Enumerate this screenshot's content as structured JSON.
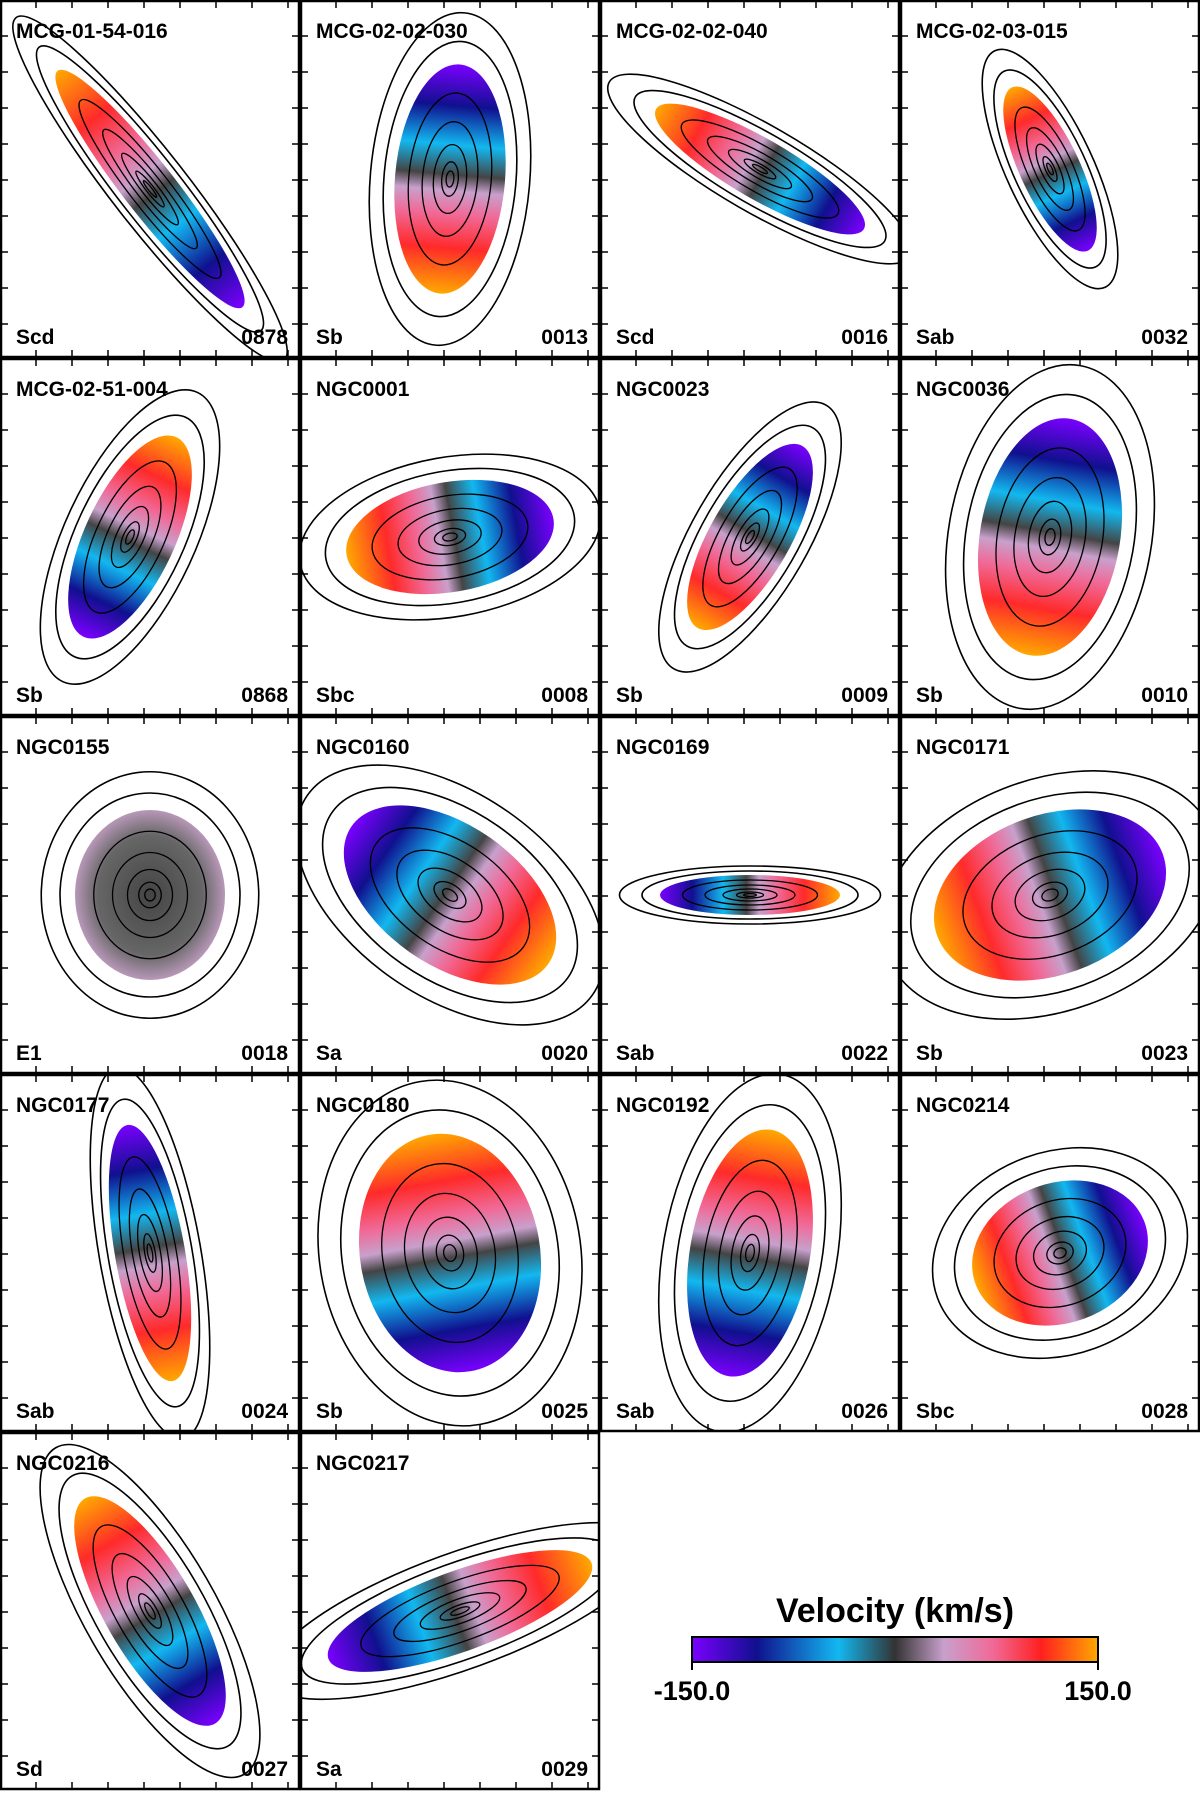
{
  "panels": [
    {
      "name": "MCG-01-54-016",
      "morphology": "Scd",
      "id": "0878"
    },
    {
      "name": "MCG-02-02-030",
      "morphology": "Sb",
      "id": "0013"
    },
    {
      "name": "MCG-02-02-040",
      "morphology": "Scd",
      "id": "0016"
    },
    {
      "name": "MCG-02-03-015",
      "morphology": "Sab",
      "id": "0032"
    },
    {
      "name": "MCG-02-51-004",
      "morphology": "Sb",
      "id": "0868"
    },
    {
      "name": "NGC0001",
      "morphology": "Sbc",
      "id": "0008"
    },
    {
      "name": "NGC0023",
      "morphology": "Sb",
      "id": "0009"
    },
    {
      "name": "NGC0036",
      "morphology": "Sb",
      "id": "0010"
    },
    {
      "name": "NGC0155",
      "morphology": "E1",
      "id": "0018"
    },
    {
      "name": "NGC0160",
      "morphology": "Sa",
      "id": "0020"
    },
    {
      "name": "NGC0169",
      "morphology": "Sab",
      "id": "0022"
    },
    {
      "name": "NGC0171",
      "morphology": "Sb",
      "id": "0023"
    },
    {
      "name": "NGC0177",
      "morphology": "Sab",
      "id": "0024"
    },
    {
      "name": "NGC0180",
      "morphology": "Sb",
      "id": "0025"
    },
    {
      "name": "NGC0192",
      "morphology": "Sab",
      "id": "0026"
    },
    {
      "name": "NGC0214",
      "morphology": "Sbc",
      "id": "0028"
    },
    {
      "name": "NGC0216",
      "morphology": "Sd",
      "id": "0027"
    },
    {
      "name": "NGC0217",
      "morphology": "Sa",
      "id": "0029"
    }
  ],
  "colorbar": {
    "title": "Velocity (km/s)",
    "min": {
      "value": -150,
      "label": "-150.0"
    },
    "max": {
      "value": 150,
      "label": "150.0"
    }
  }
}
